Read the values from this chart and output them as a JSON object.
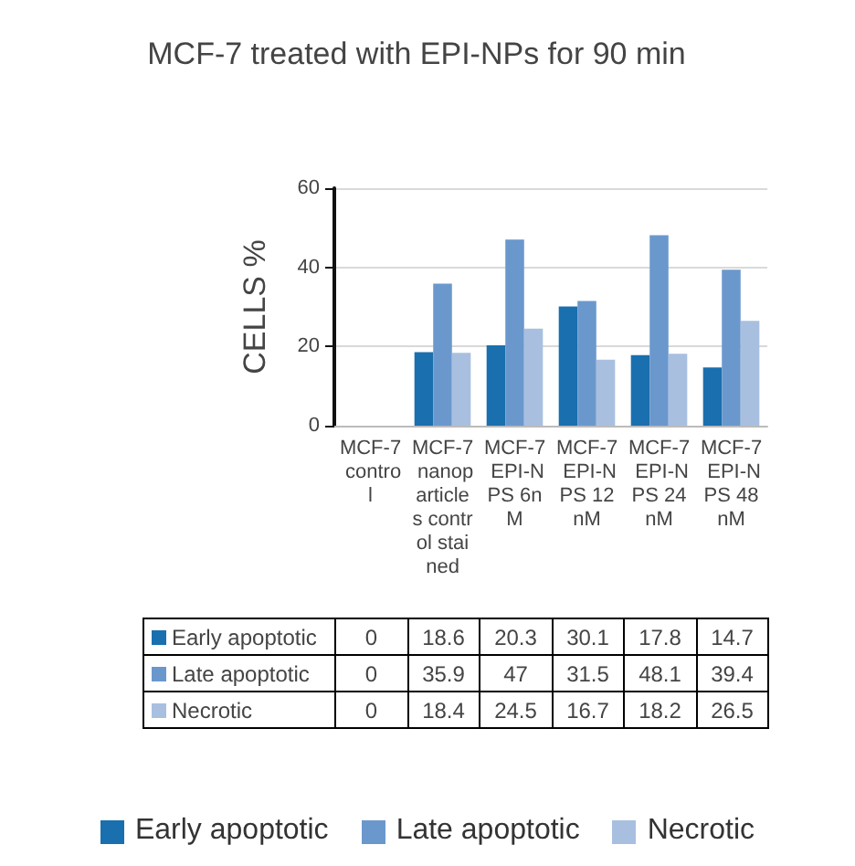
{
  "chart_data": {
    "type": "bar",
    "title": "MCF-7 treated with EPI-NPs for 90 min",
    "ylabel": "CELLS %",
    "categories": [
      "MCF-7 control",
      "MCF-7 nanoparticles control stained",
      "MCF-7 EPI-NPS 6nM",
      "MCF-7 EPI-NPS 12nM",
      "MCF-7 EPI-NPS 24nM",
      "MCF-7 EPI-NPS 48nM"
    ],
    "series": [
      {
        "name": "Early apoptotic",
        "color": "#1a6fae",
        "values": [
          0,
          18.6,
          20.3,
          30.1,
          17.8,
          14.7
        ]
      },
      {
        "name": "Late apoptotic",
        "color": "#6a98cd",
        "values": [
          0,
          35.9,
          47,
          31.5,
          48.1,
          39.4
        ]
      },
      {
        "name": "Necrotic",
        "color": "#a9bfe0",
        "values": [
          0,
          18.4,
          24.5,
          16.7,
          18.2,
          26.5
        ]
      }
    ],
    "ylim": [
      0,
      60
    ],
    "yticks": [
      0,
      20,
      40,
      60
    ],
    "grid": "y",
    "legend": "bottom",
    "data_labels": true
  }
}
